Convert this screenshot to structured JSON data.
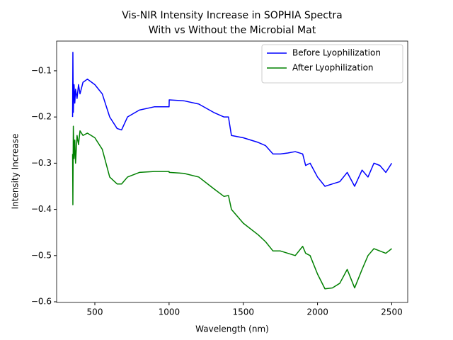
{
  "chart_data": {
    "type": "line",
    "title": [
      "Vis-NIR Intensity Increase in SOPHIA Spectra",
      "With vs Without the Microbial Mat"
    ],
    "x_label": "Wavelength (nm)",
    "y_label": "Intensity Increase",
    "x": [
      350,
      352,
      355,
      360,
      365,
      370,
      380,
      390,
      400,
      420,
      450,
      500,
      550,
      600,
      650,
      680,
      720,
      800,
      900,
      1000,
      1001,
      1100,
      1200,
      1300,
      1370,
      1400,
      1420,
      1500,
      1600,
      1650,
      1700,
      1750,
      1800,
      1850,
      1900,
      1920,
      1950,
      2000,
      2050,
      2100,
      2150,
      2200,
      2250,
      2300,
      2340,
      2380,
      2420,
      2460,
      2500
    ],
    "series": [
      {
        "name": "Before Lyophilization",
        "color": "#0000ff",
        "values": [
          -0.2,
          -0.06,
          -0.19,
          -0.13,
          -0.17,
          -0.14,
          -0.16,
          -0.13,
          -0.15,
          -0.125,
          -0.118,
          -0.13,
          -0.15,
          -0.2,
          -0.225,
          -0.228,
          -0.2,
          -0.185,
          -0.178,
          -0.178,
          -0.163,
          -0.165,
          -0.172,
          -0.19,
          -0.2,
          -0.2,
          -0.24,
          -0.245,
          -0.255,
          -0.262,
          -0.28,
          -0.28,
          -0.278,
          -0.275,
          -0.28,
          -0.305,
          -0.3,
          -0.33,
          -0.35,
          -0.345,
          -0.34,
          -0.32,
          -0.35,
          -0.315,
          -0.33,
          -0.3,
          -0.305,
          -0.32,
          -0.3
        ]
      },
      {
        "name": "After Lyophilization",
        "color": "#008000",
        "values": [
          -0.28,
          -0.39,
          -0.22,
          -0.29,
          -0.25,
          -0.3,
          -0.24,
          -0.26,
          -0.23,
          -0.24,
          -0.235,
          -0.245,
          -0.27,
          -0.33,
          -0.345,
          -0.345,
          -0.33,
          -0.32,
          -0.318,
          -0.318,
          -0.32,
          -0.322,
          -0.33,
          -0.355,
          -0.372,
          -0.37,
          -0.4,
          -0.43,
          -0.455,
          -0.47,
          -0.49,
          -0.49,
          -0.495,
          -0.5,
          -0.48,
          -0.495,
          -0.5,
          -0.54,
          -0.572,
          -0.57,
          -0.56,
          -0.53,
          -0.57,
          -0.53,
          -0.5,
          -0.485,
          -0.49,
          -0.495,
          -0.485
        ]
      }
    ],
    "xlim": [
      242.5,
      2607.5
    ],
    "xticks": [
      500,
      1000,
      1500,
      2000,
      2500
    ],
    "ylim": [
      -0.6015,
      -0.0357
    ],
    "yticks": [
      {
        "value": -0.6,
        "label": "−0.6"
      },
      {
        "value": -0.5,
        "label": "−0.5"
      },
      {
        "value": -0.4,
        "label": "−0.4"
      },
      {
        "value": -0.3,
        "label": "−0.3"
      },
      {
        "value": -0.2,
        "label": "−0.2"
      },
      {
        "value": -0.1,
        "label": "−0.1"
      }
    ],
    "legend": "upper right"
  }
}
